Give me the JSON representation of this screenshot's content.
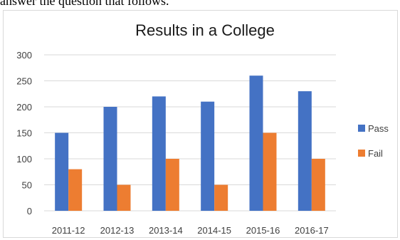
{
  "context_text": "answer the question that follows.",
  "chart_data": {
    "type": "bar",
    "title": "Results in a College",
    "xlabel": "",
    "ylabel": "",
    "categories": [
      "2011-12",
      "2012-13",
      "2013-14",
      "2014-15",
      "2015-16",
      "2016-17"
    ],
    "series": [
      {
        "name": "Pass",
        "color": "#4472c4",
        "values": [
          150,
          200,
          220,
          210,
          260,
          230
        ]
      },
      {
        "name": "Fail",
        "color": "#ed7d31",
        "values": [
          80,
          50,
          100,
          50,
          150,
          100
        ]
      }
    ],
    "ylim": [
      0,
      300
    ],
    "yticks": [
      0,
      50,
      100,
      150,
      200,
      250,
      300
    ],
    "grid": "horizontal",
    "legend": "right"
  }
}
